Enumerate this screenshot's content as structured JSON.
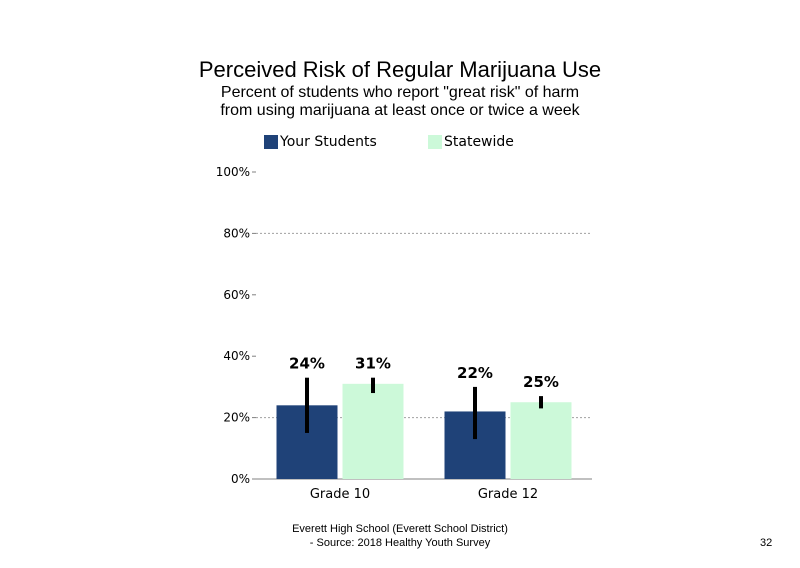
{
  "chart_data": {
    "type": "bar",
    "title": "Perceived Risk of Regular Marijuana Use",
    "subtitle": [
      "Percent of students who report \"great risk\" of harm",
      "from using marijuana at least once or twice a week"
    ],
    "categories": [
      "Grade 10",
      "Grade 12"
    ],
    "series": [
      {
        "name": "Your Students",
        "color": "#1f4278",
        "values": [
          24,
          22
        ],
        "labels": [
          "24%",
          "22%"
        ],
        "error_low": [
          15,
          13
        ],
        "error_high": [
          33,
          30
        ]
      },
      {
        "name": "Statewide",
        "color": "#ccf9d9",
        "values": [
          31,
          25
        ],
        "labels": [
          "31%",
          "25%"
        ],
        "error_low": [
          28,
          23
        ],
        "error_high": [
          33,
          27
        ]
      }
    ],
    "ylim": [
      0,
      100
    ],
    "yticks": [
      0,
      20,
      40,
      60,
      80,
      100
    ],
    "ytick_labels": [
      "0%",
      "20%",
      "40%",
      "60%",
      "80%",
      "100%"
    ],
    "gridlines": [
      20,
      80
    ],
    "legend_position": "top"
  },
  "footer": {
    "line1": "Everett High School (Everett School District)",
    "line2": "- Source: 2018 Healthy Youth Survey",
    "page_number": "32"
  }
}
